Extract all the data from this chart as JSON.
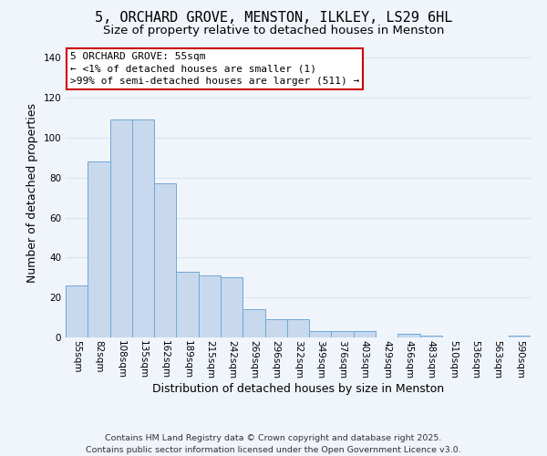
{
  "title": "5, ORCHARD GROVE, MENSTON, ILKLEY, LS29 6HL",
  "subtitle": "Size of property relative to detached houses in Menston",
  "xlabel": "Distribution of detached houses by size in Menston",
  "ylabel": "Number of detached properties",
  "categories": [
    "55sqm",
    "82sqm",
    "108sqm",
    "135sqm",
    "162sqm",
    "189sqm",
    "215sqm",
    "242sqm",
    "269sqm",
    "296sqm",
    "322sqm",
    "349sqm",
    "376sqm",
    "403sqm",
    "429sqm",
    "456sqm",
    "483sqm",
    "510sqm",
    "536sqm",
    "563sqm",
    "590sqm"
  ],
  "values": [
    26,
    88,
    109,
    109,
    77,
    33,
    31,
    30,
    14,
    9,
    9,
    3,
    3,
    3,
    0,
    2,
    1,
    0,
    0,
    0,
    1
  ],
  "bar_color": "#c8d9ee",
  "bar_edge_color": "#6fa8d4",
  "ylim": [
    0,
    145
  ],
  "yticks": [
    0,
    20,
    40,
    60,
    80,
    100,
    120,
    140
  ],
  "annotation_title": "5 ORCHARD GROVE: 55sqm",
  "annotation_line1": "← <1% of detached houses are smaller (1)",
  "annotation_line2": ">99% of semi-detached houses are larger (511) →",
  "annotation_box_color": "#ffffff",
  "annotation_border_color": "#cc0000",
  "footer_line1": "Contains HM Land Registry data © Crown copyright and database right 2025.",
  "footer_line2": "Contains public sector information licensed under the Open Government Licence v3.0.",
  "background_color": "#f0f4fb",
  "grid_color": "#d8e4f0",
  "title_fontsize": 11,
  "subtitle_fontsize": 9.5,
  "axis_label_fontsize": 9,
  "tick_fontsize": 7.5,
  "annotation_fontsize": 8,
  "footer_fontsize": 6.8
}
